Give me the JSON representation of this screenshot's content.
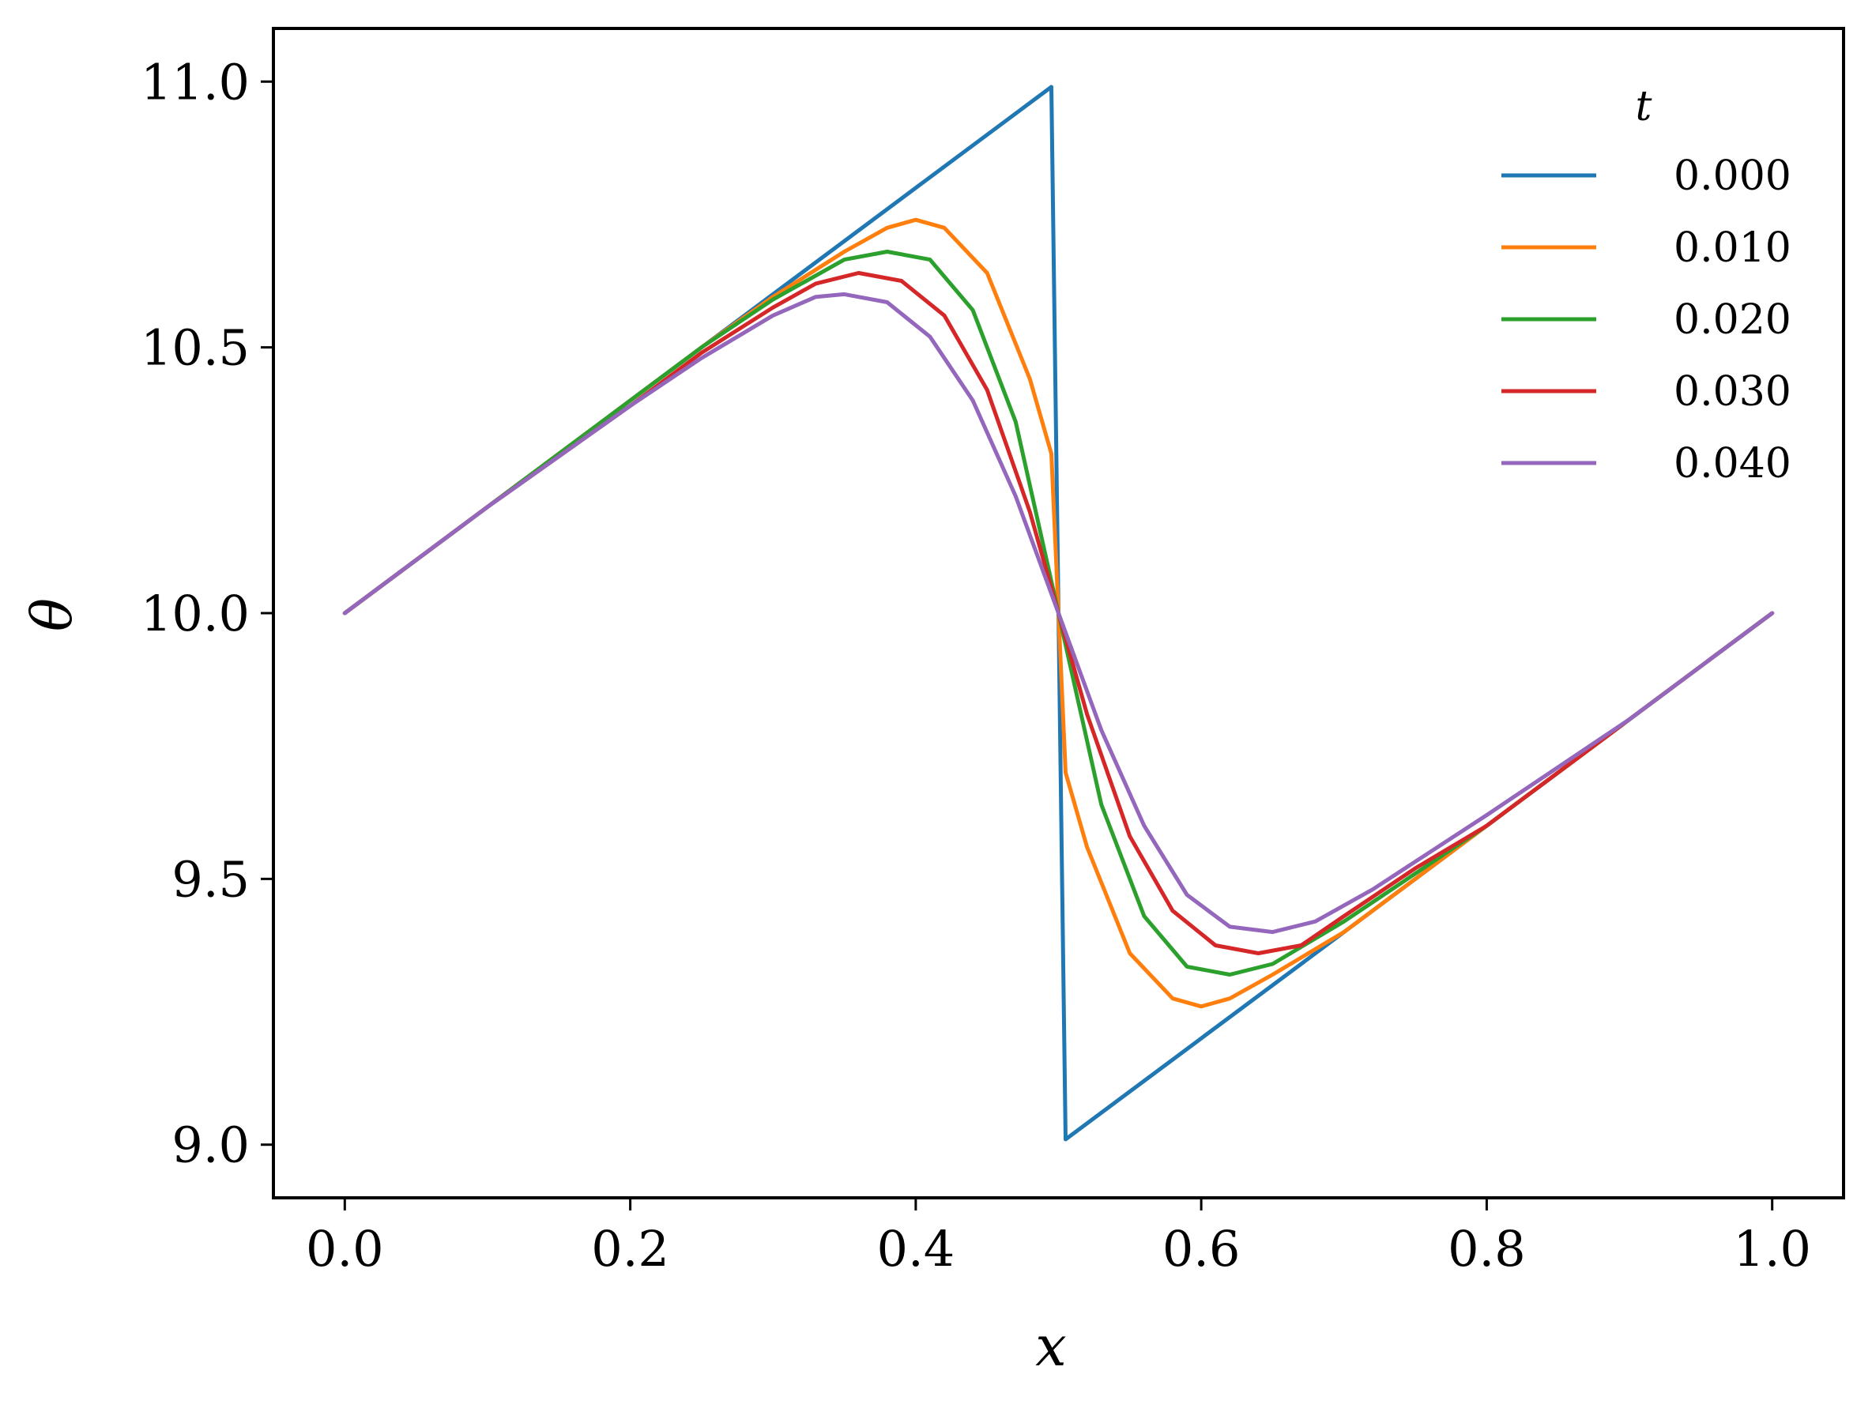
{
  "chart_data": {
    "type": "line",
    "title": "",
    "xlabel": "x",
    "ylabel": "θ",
    "xlim": [
      -0.05,
      1.05
    ],
    "ylim": [
      8.9,
      11.1
    ],
    "xticks": [
      0.0,
      0.2,
      0.4,
      0.6,
      0.8,
      1.0
    ],
    "xtick_labels": [
      "0.0",
      "0.2",
      "0.4",
      "0.6",
      "0.8",
      "1.0"
    ],
    "yticks": [
      9.0,
      9.5,
      10.0,
      10.5,
      11.0
    ],
    "ytick_labels": [
      "9.0",
      "9.5",
      "10.0",
      "10.5",
      "11.0"
    ],
    "grid": false,
    "legend": {
      "title": "t",
      "position": "top-right"
    },
    "series": [
      {
        "name": "0.000",
        "color": "#1f77b4",
        "x": [
          0.0,
          0.1,
          0.2,
          0.3,
          0.4,
          0.495,
          0.5,
          0.505,
          0.6,
          0.7,
          0.8,
          0.9,
          1.0
        ],
        "y": [
          10.0,
          10.2,
          10.4,
          10.6,
          10.8,
          10.99,
          10.0,
          9.01,
          9.2,
          9.4,
          9.6,
          9.8,
          10.0
        ]
      },
      {
        "name": "0.010",
        "color": "#ff7f0e",
        "x": [
          0.0,
          0.1,
          0.2,
          0.25,
          0.3,
          0.35,
          0.38,
          0.4,
          0.42,
          0.45,
          0.48,
          0.495,
          0.5,
          0.505,
          0.52,
          0.55,
          0.58,
          0.6,
          0.62,
          0.65,
          0.7,
          0.75,
          0.8,
          0.9,
          1.0
        ],
        "y": [
          10.0,
          10.2,
          10.4,
          10.5,
          10.595,
          10.68,
          10.725,
          10.74,
          10.725,
          10.64,
          10.44,
          10.3,
          10.0,
          9.7,
          9.56,
          9.36,
          9.275,
          9.26,
          9.275,
          9.32,
          9.4,
          9.5,
          9.6,
          9.8,
          10.0
        ]
      },
      {
        "name": "0.020",
        "color": "#2ca02c",
        "x": [
          0.0,
          0.1,
          0.2,
          0.25,
          0.3,
          0.35,
          0.38,
          0.41,
          0.44,
          0.47,
          0.5,
          0.53,
          0.56,
          0.59,
          0.62,
          0.65,
          0.7,
          0.75,
          0.8,
          0.9,
          1.0
        ],
        "y": [
          10.0,
          10.2,
          10.4,
          10.5,
          10.59,
          10.665,
          10.68,
          10.665,
          10.57,
          10.36,
          10.0,
          9.64,
          9.43,
          9.335,
          9.32,
          9.34,
          9.42,
          9.51,
          9.6,
          9.8,
          10.0
        ]
      },
      {
        "name": "0.030",
        "color": "#d62728",
        "x": [
          0.0,
          0.1,
          0.2,
          0.25,
          0.3,
          0.33,
          0.36,
          0.39,
          0.42,
          0.45,
          0.48,
          0.5,
          0.52,
          0.55,
          0.58,
          0.61,
          0.64,
          0.67,
          0.7,
          0.75,
          0.8,
          0.9,
          1.0
        ],
        "y": [
          10.0,
          10.2,
          10.39,
          10.49,
          10.575,
          10.62,
          10.64,
          10.625,
          10.56,
          10.42,
          10.19,
          10.0,
          9.81,
          9.58,
          9.44,
          9.375,
          9.36,
          9.375,
          9.43,
          9.52,
          9.6,
          9.8,
          10.0
        ]
      },
      {
        "name": "0.040",
        "color": "#9467bd",
        "x": [
          0.0,
          0.1,
          0.2,
          0.25,
          0.3,
          0.33,
          0.35,
          0.38,
          0.41,
          0.44,
          0.47,
          0.5,
          0.53,
          0.56,
          0.59,
          0.62,
          0.65,
          0.68,
          0.72,
          0.76,
          0.8,
          0.9,
          1.0
        ],
        "y": [
          10.0,
          10.2,
          10.39,
          10.48,
          10.56,
          10.595,
          10.6,
          10.585,
          10.52,
          10.4,
          10.22,
          10.0,
          9.78,
          9.6,
          9.47,
          9.41,
          9.4,
          9.42,
          9.48,
          9.55,
          9.62,
          9.8,
          10.0
        ]
      }
    ]
  }
}
